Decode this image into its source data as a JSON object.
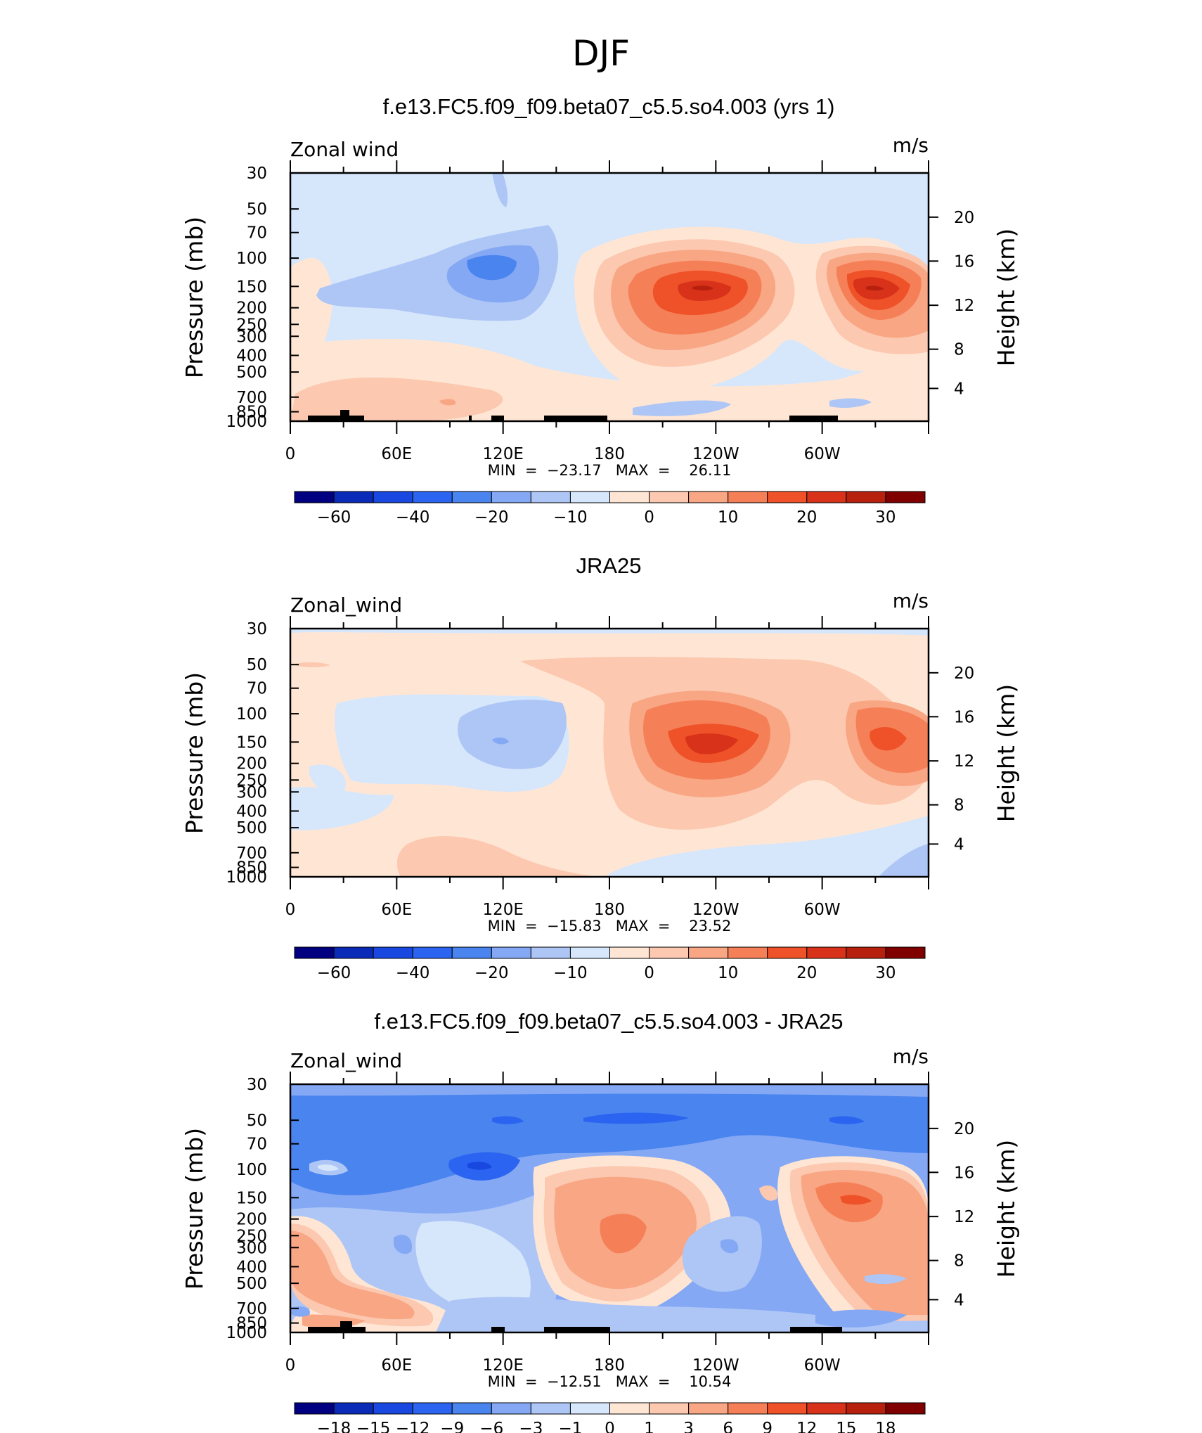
{
  "page": {
    "title": "DJF"
  },
  "colors": {
    "scale": [
      "#000080",
      "#0a2ab8",
      "#1848e0",
      "#2a64f0",
      "#4a84ee",
      "#84a8f4",
      "#adc6f6",
      "#d6e6fb",
      "#ffe6d4",
      "#fcc8b0",
      "#f8a684",
      "#f58058",
      "#ef5228",
      "#d8321a",
      "#b8200e",
      "#800000"
    ]
  },
  "shared": {
    "x_tick_labels": [
      "0",
      "60E",
      "120E",
      "180",
      "120W",
      "60W"
    ],
    "y_tick_labels": [
      "30",
      "50",
      "70",
      "100",
      "150",
      "200",
      "250",
      "300",
      "400",
      "500",
      "700",
      "850",
      "1000"
    ],
    "y2_tick_labels": [
      "20",
      "16",
      "12",
      "8",
      "4"
    ],
    "ylabel": "Pressure  (mb)",
    "y2label": "Height  (km)",
    "units": "m/s"
  },
  "panels": [
    {
      "title": "f.e13.FC5.f09_f09.beta07_c5.5.so4.003 (yrs 1)",
      "field_label": "Zonal wind",
      "stats": "MIN  =  −23.17   MAX  =    26.11",
      "colorbar_labels": [
        "−60",
        "−40",
        "−20",
        "−10",
        "0",
        "10",
        "20",
        "30"
      ]
    },
    {
      "title": "JRA25",
      "field_label": "Zonal_wind",
      "stats": "MIN  =  −15.83   MAX  =    23.52",
      "colorbar_labels": [
        "−60",
        "−40",
        "−20",
        "−10",
        "0",
        "10",
        "20",
        "30"
      ]
    },
    {
      "title": "f.e13.FC5.f09_f09.beta07_c5.5.so4.003 - JRA25",
      "field_label": "Zonal_wind",
      "stats": "MIN  =  −12.51   MAX  =    10.54",
      "colorbar_labels": [
        "−18",
        "−15",
        "−12",
        "−9",
        "−6",
        "−3",
        "−1",
        "0",
        "1",
        "3",
        "6",
        "9",
        "12",
        "15",
        "18"
      ]
    }
  ],
  "chart_data": [
    {
      "type": "heatmap",
      "title": "f.e13.FC5.f09_f09.beta07_c5.5.so4.003 (yrs 1)",
      "xlabel": "",
      "ylabel": "Pressure  (mb)",
      "xlim": [
        0,
        360
      ],
      "ylim": [
        1000,
        30
      ],
      "x_ticks": [
        "0",
        "60E",
        "120E",
        "180",
        "120W",
        "60W"
      ],
      "levels": [
        -60,
        -50,
        -40,
        -30,
        -20,
        -15,
        -10,
        -5,
        0,
        5,
        10,
        15,
        20,
        25,
        30
      ],
      "min": -23.17,
      "max": 26.11,
      "features": [
        {
          "lon": 340,
          "p": 125,
          "value": 26.11
        },
        {
          "lon": 115,
          "p": 110,
          "value": -23.17
        },
        {
          "lon": 325,
          "p": 140,
          "value": 24
        },
        {
          "lon": 95,
          "p": 120,
          "value": -12
        },
        {
          "lon": 40,
          "p": 700,
          "value": 3
        },
        {
          "lon": 210,
          "p": 800,
          "value": -6
        }
      ]
    },
    {
      "type": "heatmap",
      "title": "JRA25",
      "xlabel": "",
      "ylabel": "Pressure  (mb)",
      "xlim": [
        0,
        360
      ],
      "ylim": [
        1000,
        30
      ],
      "x_ticks": [
        "0",
        "60E",
        "120E",
        "180",
        "120W",
        "60W"
      ],
      "levels": [
        -60,
        -50,
        -40,
        -30,
        -20,
        -15,
        -10,
        -5,
        0,
        5,
        10,
        15,
        20,
        25,
        30
      ],
      "min": -15.83,
      "max": 23.52,
      "features": [
        {
          "lon": 335,
          "p": 140,
          "value": 23.52
        },
        {
          "lon": 330,
          "p": 150,
          "value": 22
        },
        {
          "lon": 115,
          "p": 160,
          "value": -15.83
        },
        {
          "lon": 80,
          "p": 700,
          "value": 3
        }
      ]
    },
    {
      "type": "heatmap",
      "title": "f.e13.FC5.f09_f09.beta07_c5.5.so4.003 - JRA25",
      "xlabel": "",
      "ylabel": "Pressure  (mb)",
      "xlim": [
        0,
        360
      ],
      "ylim": [
        1000,
        30
      ],
      "x_ticks": [
        "0",
        "60E",
        "120E",
        "180",
        "120W",
        "60W"
      ],
      "levels": [
        -18,
        -15,
        -12,
        -9,
        -6,
        -3,
        -1,
        0,
        1,
        3,
        6,
        9,
        12,
        15,
        18
      ],
      "min": -12.51,
      "max": 10.54,
      "features": [
        {
          "lon": 105,
          "p": 105,
          "value": -12.51
        },
        {
          "lon": 310,
          "p": 135,
          "value": 10.54
        },
        {
          "lon": 185,
          "p": 250,
          "value": 8
        },
        {
          "lon": 110,
          "p": 52,
          "value": -9
        },
        {
          "lon": 10,
          "p": 380,
          "value": 5
        },
        {
          "lon": 250,
          "p": 320,
          "value": -6
        }
      ]
    }
  ]
}
